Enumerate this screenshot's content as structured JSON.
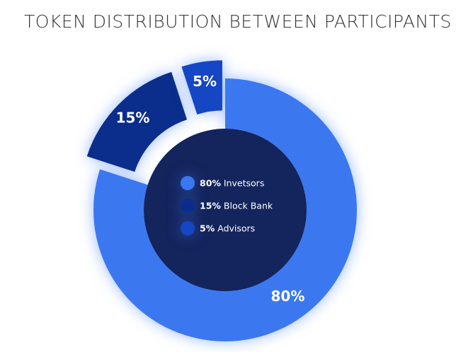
{
  "chart_data": {
    "type": "pie",
    "title": "TOKEN DISTRIBUTION BETWEEN PARTICIPANTS",
    "labels": [
      "Invetsors",
      "Block Bank",
      "Advisors"
    ],
    "values": [
      80,
      15,
      5
    ],
    "value_labels": [
      "80%",
      "15%",
      "5%"
    ],
    "colors": [
      "#3b78f0",
      "#0b2d8c",
      "#1546c4"
    ],
    "donut": true
  }
}
